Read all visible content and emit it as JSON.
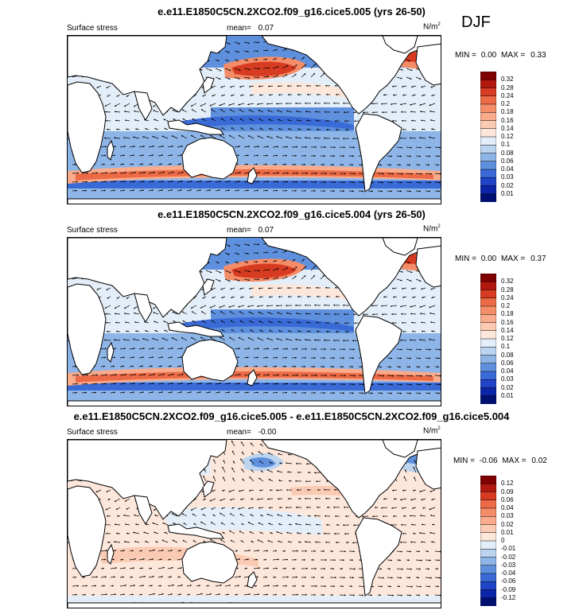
{
  "season": "DJF",
  "colors": {
    "land": "#ffffff",
    "coast": "#000000",
    "arrow": "#000000"
  },
  "chart_data": [
    {
      "type": "heatmap",
      "title": "e.e11.E1850C5CN.2XCO2.f09_g16.cice5.005 (yrs 26-50)",
      "left_label": "Surface stress",
      "mean_label": "mean=",
      "mean_value": "0.07",
      "units": "N/m",
      "units_exp": "2",
      "min_label": "MIN =",
      "min_value": "0.00",
      "max_label": "MAX =",
      "max_value": "0.33",
      "colorbar_levels": [
        "0.32",
        "0.28",
        "0.24",
        "0.2",
        "0.18",
        "0.16",
        "0.14",
        "0.12",
        "0.1",
        "0.08",
        "0.06",
        "0.04",
        "0.03",
        "0.02",
        "0.01"
      ],
      "colorbar_colors": [
        "#7f0000",
        "#b2180e",
        "#d73c22",
        "#ec6a45",
        "#f58c68",
        "#f9ab8c",
        "#fbcab3",
        "#fde6da",
        "#e3eef8",
        "#bcd4f0",
        "#8eb5e8",
        "#5f90dd",
        "#3a6ad6",
        "#1f44c8",
        "#0c25a8",
        "#001070"
      ],
      "scheme": "mean"
    },
    {
      "type": "heatmap",
      "title": "e.e11.E1850C5CN.2XCO2.f09_g16.cice5.004 (yrs 26-50)",
      "left_label": "Surface stress",
      "mean_label": "mean=",
      "mean_value": "0.07",
      "units": "N/m",
      "units_exp": "2",
      "min_label": "MIN =",
      "min_value": "0.00",
      "max_label": "MAX =",
      "max_value": "0.37",
      "colorbar_levels": [
        "0.32",
        "0.28",
        "0.24",
        "0.2",
        "0.18",
        "0.16",
        "0.14",
        "0.12",
        "0.1",
        "0.08",
        "0.06",
        "0.04",
        "0.03",
        "0.02",
        "0.01"
      ],
      "colorbar_colors": [
        "#7f0000",
        "#b2180e",
        "#d73c22",
        "#ec6a45",
        "#f58c68",
        "#f9ab8c",
        "#fbcab3",
        "#fde6da",
        "#e3eef8",
        "#bcd4f0",
        "#8eb5e8",
        "#5f90dd",
        "#3a6ad6",
        "#1f44c8",
        "#0c25a8",
        "#001070"
      ],
      "scheme": "mean"
    },
    {
      "type": "heatmap",
      "title": "e.e11.E1850C5CN.2XCO2.f09_g16.cice5.005 - e.e11.E1850C5CN.2XCO2.f09_g16.cice5.004",
      "left_label": "Surface stress",
      "mean_label": "mean=",
      "mean_value": "-0.00",
      "units": "N/m",
      "units_exp": "2",
      "min_label": "MIN =",
      "min_value": "-0.06",
      "max_label": "MAX =",
      "max_value": "0.02",
      "colorbar_levels": [
        "0.12",
        "0.09",
        "0.06",
        "0.04",
        "0.03",
        "0.02",
        "0.01",
        "0",
        "-0.01",
        "-0.02",
        "-0.03",
        "-0.04",
        "-0.06",
        "-0.09",
        "-0.12"
      ],
      "colorbar_colors": [
        "#7f0000",
        "#b2180e",
        "#d73c22",
        "#ec6a45",
        "#f58c68",
        "#f9ab8c",
        "#fbcab3",
        "#fde6da",
        "#e3eef8",
        "#bcd4f0",
        "#8eb5e8",
        "#5f90dd",
        "#3a6ad6",
        "#1f44c8",
        "#0c25a8",
        "#001070"
      ],
      "scheme": "diff"
    }
  ]
}
